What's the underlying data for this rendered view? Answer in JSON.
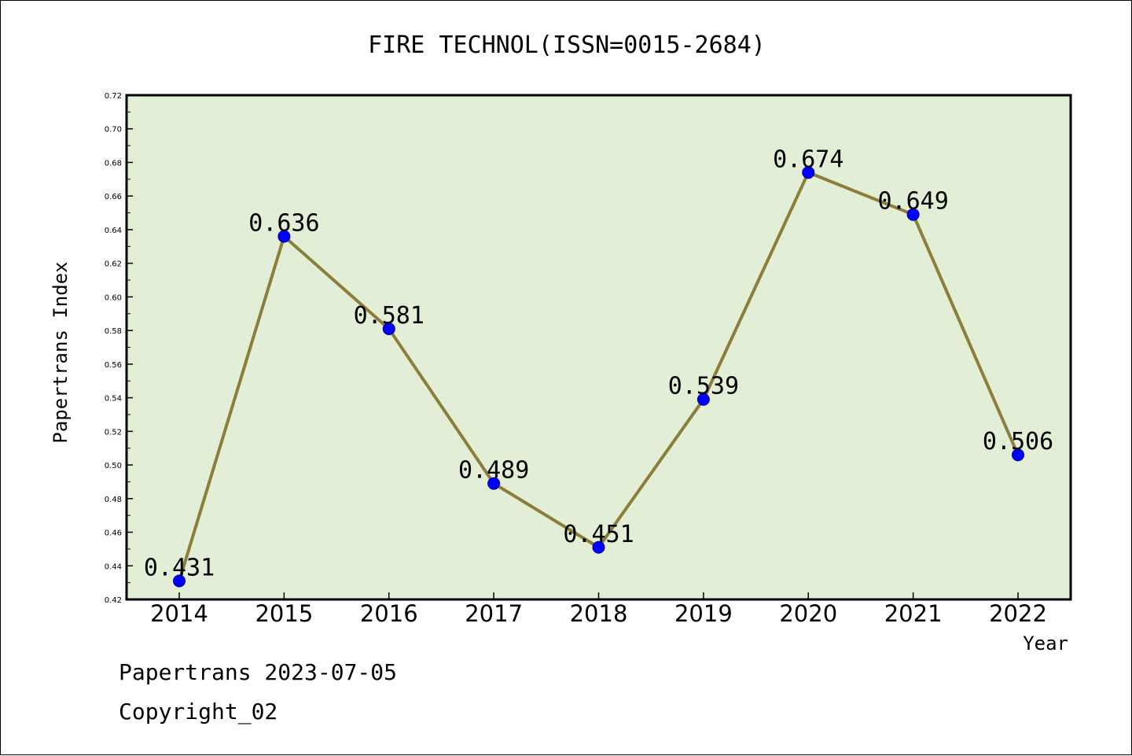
{
  "chart_data": {
    "type": "line",
    "title": "FIRE TECHNOL(ISSN=0015-2684)",
    "xlabel": "Year",
    "ylabel": "Papertrans Index",
    "categories": [
      "2014",
      "2015",
      "2016",
      "2017",
      "2018",
      "2019",
      "2020",
      "2021",
      "2022"
    ],
    "series": [
      {
        "values": [
          0.431,
          0.636,
          0.581,
          0.489,
          0.451,
          0.539,
          0.674,
          0.649,
          0.506
        ],
        "data_labels": [
          "0.431",
          "0.636",
          "0.581",
          "0.489",
          "0.451",
          "0.539",
          "0.674",
          "0.649",
          "0.506"
        ]
      }
    ],
    "ylim": [
      0.42,
      0.72
    ],
    "yticks": [
      "0.42",
      "0.44",
      "0.46",
      "0.48",
      "0.50",
      "0.52",
      "0.54",
      "0.56",
      "0.58",
      "0.60",
      "0.62",
      "0.64",
      "0.66",
      "0.68",
      "0.70",
      "0.72"
    ],
    "grid": false,
    "legend": "none",
    "colors": {
      "plot_background": "#e2efd6",
      "line": "#8b7d3a",
      "marker_fill": "#0000ff",
      "marker_stroke": "#00008b"
    }
  },
  "footer": {
    "line1": "Papertrans 2023-07-05",
    "line2": "Copyright_02"
  }
}
